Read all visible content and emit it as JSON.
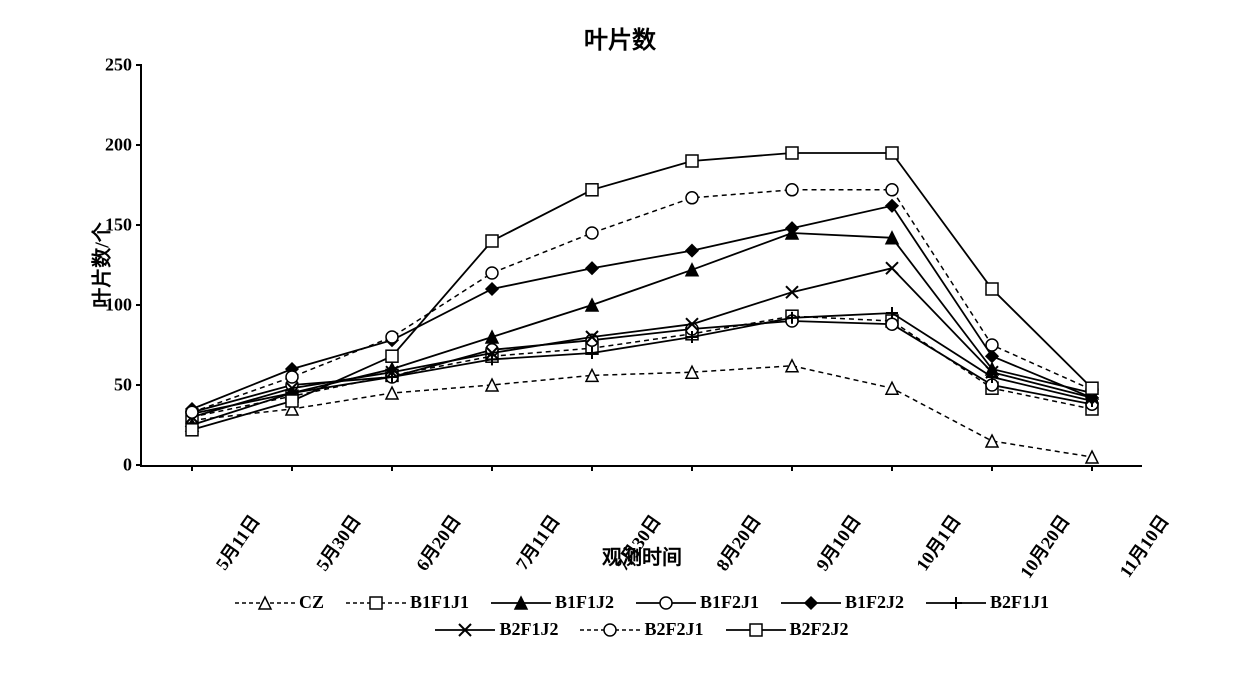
{
  "chart": {
    "type": "line",
    "title": "叶片数",
    "title_fontsize": 24,
    "xlabel": "观测时间",
    "ylabel": "叶片数/个",
    "label_fontsize": 20,
    "tick_fontsize": 18,
    "background_color": "#ffffff",
    "axis_color": "#000000",
    "ylim": [
      0,
      250
    ],
    "ytick_step": 50,
    "yticks": [
      0,
      50,
      100,
      150,
      200,
      250
    ],
    "x_categories": [
      "5月11日",
      "5月30日",
      "6月20日",
      "7月11日",
      "7月30日",
      "8月20日",
      "9月10日",
      "10月1日",
      "10月20日",
      "11月10日"
    ],
    "series": [
      {
        "name": "CZ",
        "label": "CZ",
        "color": "#000000",
        "line_style": "dashed",
        "line_width": 1.5,
        "marker": "triangle",
        "marker_fill": "#ffffff",
        "marker_size": 6,
        "values": [
          28,
          35,
          45,
          50,
          56,
          58,
          62,
          48,
          15,
          5
        ]
      },
      {
        "name": "B1F1J1",
        "label": "B1F1J1",
        "color": "#000000",
        "line_style": "dashed",
        "line_width": 1.5,
        "marker": "square",
        "marker_fill": "#ffffff",
        "marker_size": 6,
        "values": [
          30,
          43,
          56,
          68,
          73,
          82,
          93,
          90,
          48,
          35
        ]
      },
      {
        "name": "B1F1J2",
        "label": "B1F1J2",
        "color": "#000000",
        "line_style": "solid",
        "line_width": 1.8,
        "marker": "triangle",
        "marker_fill": "#000000",
        "marker_size": 6,
        "values": [
          25,
          45,
          60,
          80,
          100,
          122,
          145,
          142,
          60,
          45
        ]
      },
      {
        "name": "B1F2J1",
        "label": "B1F2J1",
        "color": "#000000",
        "line_style": "solid",
        "line_width": 1.8,
        "marker": "circle",
        "marker_fill": "#ffffff",
        "marker_size": 6,
        "values": [
          33,
          50,
          55,
          72,
          78,
          85,
          90,
          88,
          50,
          38
        ]
      },
      {
        "name": "B1F2J2",
        "label": "B1F2J2",
        "color": "#000000",
        "line_style": "solid",
        "line_width": 1.8,
        "marker": "diamond",
        "marker_fill": "#000000",
        "marker_size": 6,
        "values": [
          35,
          60,
          78,
          110,
          123,
          134,
          148,
          162,
          68,
          42
        ]
      },
      {
        "name": "B2F1J1",
        "label": "B2F1J1",
        "color": "#000000",
        "line_style": "solid",
        "line_width": 1.8,
        "marker": "plus",
        "marker_fill": "#000000",
        "marker_size": 6,
        "values": [
          32,
          45,
          55,
          66,
          70,
          80,
          92,
          95,
          55,
          40
        ]
      },
      {
        "name": "B2F1J2",
        "label": "B2F1J2",
        "color": "#000000",
        "line_style": "solid",
        "line_width": 1.8,
        "marker": "x",
        "marker_fill": "#000000",
        "marker_size": 6,
        "values": [
          30,
          48,
          58,
          70,
          80,
          88,
          108,
          123,
          58,
          42
        ]
      },
      {
        "name": "B2F2J1",
        "label": "B2F2J1",
        "color": "#000000",
        "line_style": "dashed",
        "line_width": 1.5,
        "marker": "circle",
        "marker_fill": "#ffffff",
        "marker_size": 6,
        "values": [
          33,
          55,
          80,
          120,
          145,
          167,
          172,
          172,
          75,
          47
        ]
      },
      {
        "name": "B2F2J2",
        "label": "B2F2J2",
        "color": "#000000",
        "line_style": "solid",
        "line_width": 1.8,
        "marker": "square",
        "marker_fill": "#ffffff",
        "marker_size": 6,
        "values": [
          22,
          40,
          68,
          140,
          172,
          190,
          195,
          195,
          110,
          48
        ]
      }
    ]
  }
}
